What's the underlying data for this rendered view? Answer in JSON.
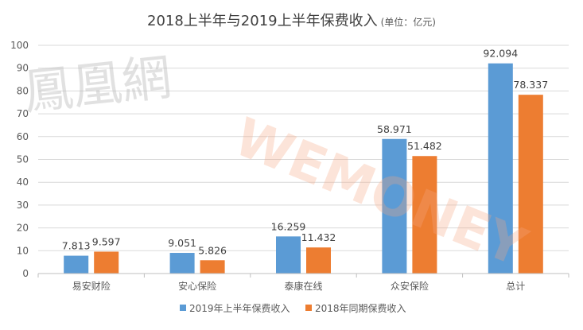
{
  "chart_data": {
    "type": "bar",
    "title": "2018上半年与2019上半年保费收入",
    "unit_note": "(单位：亿元)",
    "categories": [
      "易安财险",
      "安心保险",
      "泰康在线",
      "众安保险",
      "总计"
    ],
    "series": [
      {
        "name": "2019年上半年保费收入",
        "color": "#5b9bd5",
        "values": [
          7.813,
          9.051,
          16.259,
          58.971,
          92.094
        ]
      },
      {
        "name": "2018年同期保费收入",
        "color": "#ed7d31",
        "values": [
          9.597,
          5.826,
          11.432,
          51.482,
          78.337
        ]
      }
    ],
    "ylim": [
      0,
      100
    ],
    "yticks": [
      0,
      10,
      20,
      30,
      40,
      50,
      60,
      70,
      80,
      90,
      100
    ],
    "xlabel": "",
    "ylabel": "",
    "grid": true,
    "legend_position": "bottom"
  },
  "watermark": {
    "chinese": "鳳凰網",
    "english": "WEMONEY"
  }
}
